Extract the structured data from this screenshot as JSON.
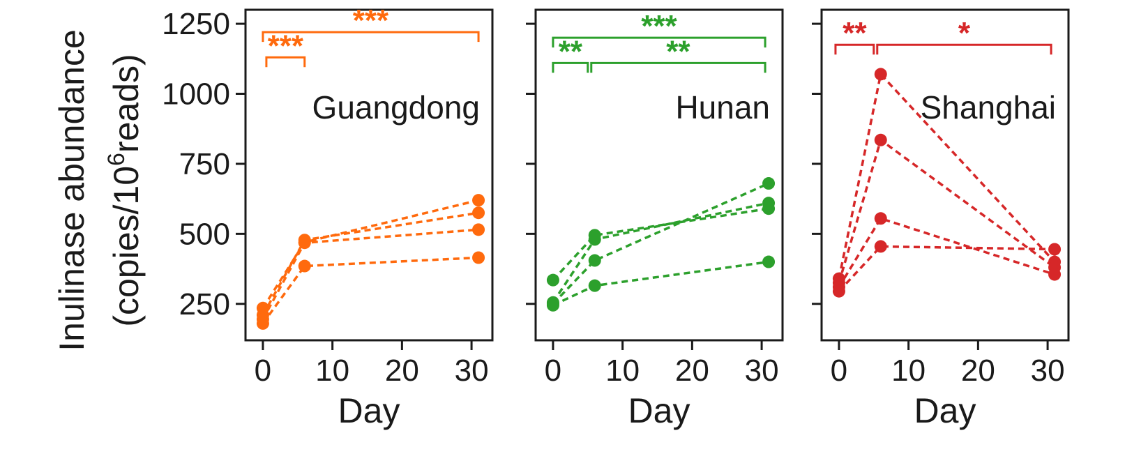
{
  "chart_data": {
    "type": "line",
    "ylabel": "Inulinase abundance",
    "ylabel_unit": "(copies/10",
    "ylabel_sup": "6",
    "ylabel_tail": "reads)",
    "xlabel": "Day",
    "ylim": [
      120,
      1300
    ],
    "xlim": [
      -2.5,
      33
    ],
    "yticks": [
      250,
      500,
      750,
      1000,
      1250
    ],
    "xticks": [
      0,
      10,
      20,
      30
    ],
    "panels": [
      {
        "name": "Guangdong",
        "color": "#ff6a0d",
        "x": [
          0,
          6,
          31
        ],
        "series": [
          {
            "values": [
              235,
              470,
              620
            ]
          },
          {
            "values": [
              210,
              478,
              575
            ]
          },
          {
            "values": [
              195,
              468,
              515
            ]
          },
          {
            "values": [
              180,
              385,
              415
            ]
          }
        ],
        "significance": [
          {
            "stars": "***",
            "from": 0,
            "to": 31,
            "level": 1220
          },
          {
            "stars": "***",
            "from": 0.5,
            "to": 6,
            "level": 1130
          }
        ]
      },
      {
        "name": "Hunan",
        "color": "#2ca02c",
        "x": [
          0,
          6,
          31
        ],
        "series": [
          {
            "values": [
              335,
              495,
              590
            ]
          },
          {
            "values": [
              255,
              480,
              610
            ]
          },
          {
            "values": [
              250,
              405,
              680
            ]
          },
          {
            "values": [
              245,
              315,
              400
            ]
          }
        ],
        "significance": [
          {
            "stars": "***",
            "from": 0,
            "to": 30.5,
            "level": 1200
          },
          {
            "stars": "**",
            "from": 0,
            "to": 5,
            "level": 1110
          },
          {
            "stars": "**",
            "from": 5.5,
            "to": 30.5,
            "level": 1110
          }
        ]
      },
      {
        "name": "Shanghai",
        "color": "#d62728",
        "x": [
          0,
          6,
          31
        ],
        "series": [
          {
            "values": [
              340,
              1070,
              400
            ]
          },
          {
            "values": [
              325,
              835,
              380
            ]
          },
          {
            "values": [
              310,
              555,
              355
            ]
          },
          {
            "values": [
              295,
              455,
              445
            ]
          }
        ],
        "significance": [
          {
            "stars": "**",
            "from": -0.5,
            "to": 5,
            "level": 1175
          },
          {
            "stars": "*",
            "from": 5.5,
            "to": 30.5,
            "level": 1175
          }
        ]
      }
    ]
  }
}
